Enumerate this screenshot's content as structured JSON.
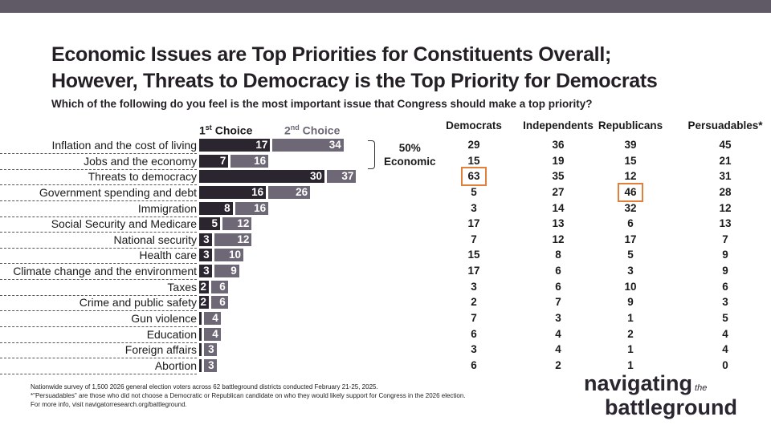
{
  "header": {
    "title_line1": "Economic Issues are Top Priorities for Constituents Overall;",
    "title_line2": "However, Threats to Democracy is the Top Priority for Democrats",
    "question": "Which of the following do you feel is the most important issue that Congress should make a top priority?"
  },
  "legend": {
    "first_num": "1",
    "first_sup": "st",
    "first_word": " Choice",
    "second_num": "2",
    "second_sup": "nd",
    "second_word": " Choice"
  },
  "bracket": {
    "pct": "50%",
    "label": "Economic"
  },
  "columns": [
    "Democrats",
    "Independents",
    "Republicans",
    "Persuadables*"
  ],
  "colors": {
    "first": "#2b2530",
    "second": "#6e6876",
    "highlight": "#e0803a"
  },
  "chart_data": {
    "type": "bar",
    "orientation": "horizontal",
    "stacked_cumulative": true,
    "series_names": [
      "1st Choice",
      "2nd Choice"
    ],
    "categories": [
      "Inflation and the cost of living",
      "Jobs and the economy",
      "Threats to democracy",
      "Government spending and debt",
      "Immigration",
      "Social Security and Medicare",
      "National security",
      "Health care",
      "Climate change and the environment",
      "Taxes",
      "Crime and public safety",
      "Gun violence",
      "Education",
      "Foreign affairs",
      "Abortion"
    ],
    "first": [
      17,
      7,
      30,
      16,
      8,
      5,
      3,
      3,
      3,
      2,
      2,
      null,
      null,
      null,
      null
    ],
    "second": [
      34,
      16,
      37,
      26,
      16,
      12,
      12,
      10,
      9,
      6,
      6,
      4,
      4,
      3,
      3
    ],
    "table": [
      [
        29,
        36,
        39,
        45
      ],
      [
        15,
        19,
        15,
        21
      ],
      [
        63,
        35,
        12,
        31
      ],
      [
        5,
        27,
        46,
        28
      ],
      [
        3,
        14,
        32,
        12
      ],
      [
        17,
        13,
        6,
        13
      ],
      [
        7,
        12,
        17,
        7
      ],
      [
        15,
        8,
        5,
        9
      ],
      [
        17,
        6,
        3,
        9
      ],
      [
        3,
        6,
        10,
        6
      ],
      [
        2,
        7,
        9,
        3
      ],
      [
        7,
        3,
        1,
        5
      ],
      [
        6,
        4,
        2,
        4
      ],
      [
        3,
        4,
        1,
        4
      ],
      [
        6,
        2,
        1,
        0
      ]
    ],
    "highlighted": [
      [
        2,
        0
      ],
      [
        3,
        2
      ]
    ]
  },
  "footnotes": [
    "Nationwide survey of 1,500 2026 general election voters across 62 battleground districts conducted February 21-25, 2025.",
    "*\"Persuadables\" are those who did not choose a Democratic or Republican candidate on who they would likely support for Congress in the 2026 election.",
    "For more info, visit navigatorresearch.org/battleground."
  ],
  "logo": {
    "line1": "navigating",
    "the": "the",
    "line2": "battleground"
  }
}
